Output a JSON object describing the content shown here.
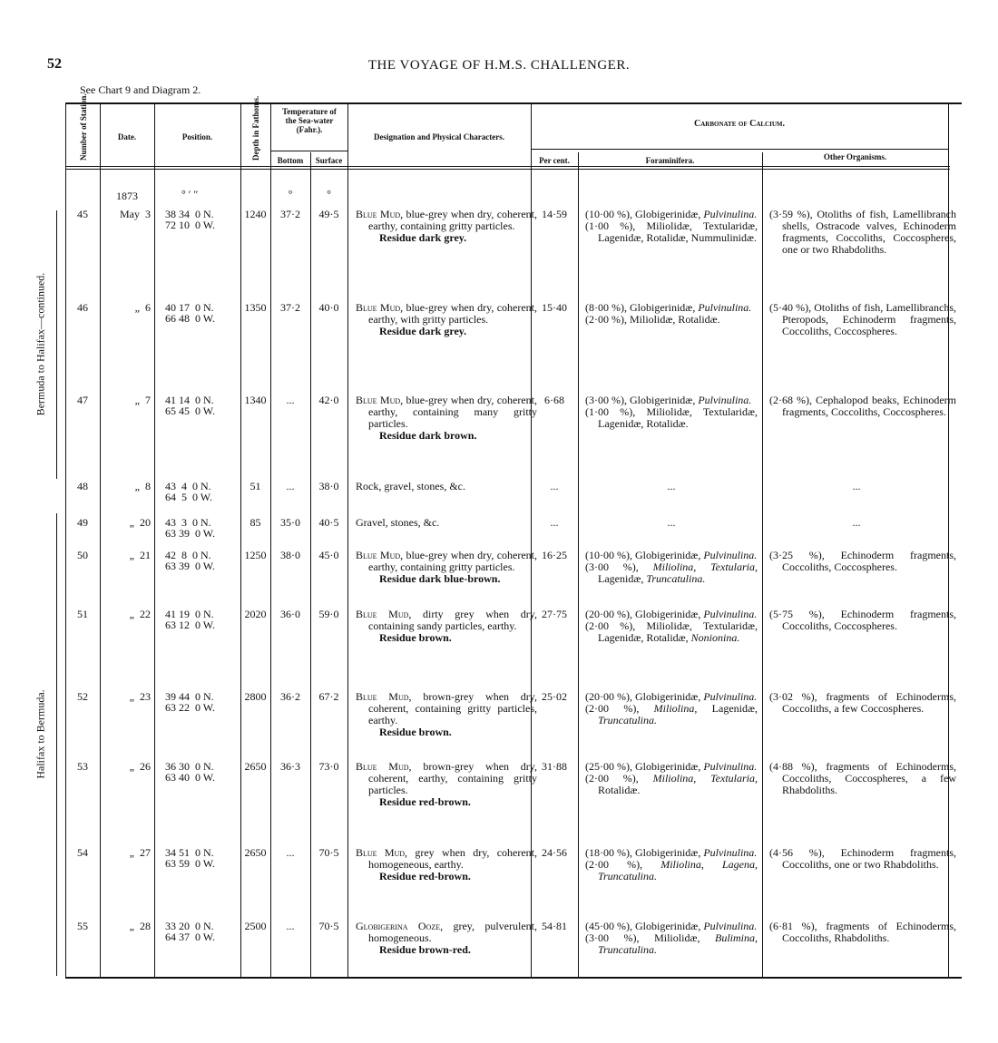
{
  "page": {
    "number": "52",
    "running_title": "THE VOYAGE OF H.M.S. CHALLENGER.",
    "see_note": "See Chart 9 and Diagram 2."
  },
  "side_labels": {
    "upper": "Bermuda to Halifax—continued.",
    "lower": "Halifax to Bermuda."
  },
  "headers": {
    "station": "Number of Station.",
    "date": "Date.",
    "position": "Position.",
    "depth": "Depth in Fathoms.",
    "temperature": "Temperature of the Sea-water (Fahr.).",
    "bottom": "Bottom",
    "surface": "Surface",
    "designation": "Designation and Physical Characters.",
    "carbonate": "Carbonate of Calcium.",
    "per_cent": "Per cent.",
    "foraminifera": "Foraminifera.",
    "other": "Other Organisms."
  },
  "units": {
    "year": "1873",
    "position_units": "°   ′   ″",
    "temp_bottom_unit": "°",
    "temp_surface_unit": "°"
  },
  "rows": [
    {
      "station": "45",
      "date": "May  3",
      "lat": "38 34  0 N.",
      "lon": "72 10  0 W.",
      "depth": "1240",
      "bottom": "37·2",
      "surface": "49·5",
      "des_lead": "Blue Mud,",
      "des_text": "blue-grey when dry, coherent, earthy, containing gritty particles.",
      "residue": "Residue dark grey.",
      "percent": "14·59",
      "foram": [
        [
          {
            "t": "(10·00 %), Globigerinidæ, "
          },
          {
            "t": "Pulvinulina.",
            "i": true
          }
        ],
        [
          {
            "t": "(1·00 %), Miliolidæ, Textularidæ, Lagenidæ, Rotalidæ, Nummulinidæ."
          }
        ]
      ],
      "other": "(3·59 %), Otoliths of fish, Lamellibranch shells, Ostracode valves, Echinoderm fragments, Coccoliths, Coccospheres, one or two Rhabdoliths."
    },
    {
      "station": "46",
      "date": "„  6",
      "lat": "40 17  0 N.",
      "lon": "66 48  0 W.",
      "depth": "1350",
      "bottom": "37·2",
      "surface": "40·0",
      "des_lead": "Blue Mud,",
      "des_text": "blue-grey when dry, coherent, earthy, with gritty particles.",
      "residue": "Residue dark grey.",
      "percent": "15·40",
      "foram": [
        [
          {
            "t": "(8·00 %), Globigerinidæ, "
          },
          {
            "t": "Pulvinulina.",
            "i": true
          }
        ],
        [
          {
            "t": "(2·00 %), Miliolidæ, Rotalidæ."
          }
        ]
      ],
      "other": "(5·40 %), Otoliths of fish, Lamellibranchs, Pteropods, Echinoderm fragments, Coccoliths, Coccospheres."
    },
    {
      "station": "47",
      "date": "„  7",
      "lat": "41 14  0 N.",
      "lon": "65 45  0 W.",
      "depth": "1340",
      "bottom": "...",
      "surface": "42·0",
      "des_lead": "Blue Mud,",
      "des_text": "blue-grey when dry, coherent, earthy, containing many gritty particles.",
      "residue": "Residue dark brown.",
      "percent": "6·68",
      "foram": [
        [
          {
            "t": "(3·00 %), Globigerinidæ, "
          },
          {
            "t": "Pulvinulina.",
            "i": true
          }
        ],
        [
          {
            "t": "(1·00 %), Miliolidæ, Textularidæ, Lagenidæ, Rotalidæ."
          }
        ]
      ],
      "other": "(2·68 %), Cephalopod beaks, Echinoderm fragments, Coccoliths, Coccospheres."
    },
    {
      "station": "48",
      "date": "„  8",
      "lat": "43  4  0 N.",
      "lon": "64  5  0 W.",
      "depth": "51",
      "bottom": "...",
      "surface": "38·0",
      "des_lead": "",
      "des_text": "Rock, gravel, stones, &c.",
      "residue": "",
      "percent": "...",
      "foram": [
        [
          {
            "t": "..."
          }
        ]
      ],
      "other": "..."
    },
    {
      "station": "49",
      "date": "„  20",
      "lat": "43  3  0 N.",
      "lon": "63 39  0 W.",
      "depth": "85",
      "bottom": "35·0",
      "surface": "40·5",
      "des_lead": "",
      "des_text": "Gravel, stones, &c.",
      "residue": "",
      "percent": "...",
      "foram": [
        [
          {
            "t": "..."
          }
        ]
      ],
      "other": "..."
    },
    {
      "station": "50",
      "date": "„  21",
      "lat": "42  8  0 N.",
      "lon": "63 39  0 W.",
      "depth": "1250",
      "bottom": "38·0",
      "surface": "45·0",
      "des_lead": "Blue Mud,",
      "des_text": "blue-grey when dry, coherent, earthy, containing gritty particles.",
      "residue": "Residue dark blue-brown.",
      "percent": "16·25",
      "foram": [
        [
          {
            "t": "(10·00 %), Globigerinidæ, "
          },
          {
            "t": "Pulvinulina.",
            "i": true
          }
        ],
        [
          {
            "t": "(3·00 %), "
          },
          {
            "t": "Miliolina, Textularia,",
            "i": true
          },
          {
            "t": " Lagenidæ, "
          },
          {
            "t": "Truncatulina.",
            "i": true
          }
        ]
      ],
      "other": "(3·25 %), Echinoderm fragments, Coccoliths, Coccospheres."
    },
    {
      "station": "51",
      "date": "„  22",
      "lat": "41 19  0 N.",
      "lon": "63 12  0 W.",
      "depth": "2020",
      "bottom": "36·0",
      "surface": "59·0",
      "des_lead": "Blue Mud,",
      "des_text": "dirty grey when dry, containing sandy particles, earthy.",
      "residue": "Residue brown.",
      "percent": "27·75",
      "foram": [
        [
          {
            "t": "(20·00 %), Globigerinidæ, "
          },
          {
            "t": "Pulvinulina.",
            "i": true
          }
        ],
        [
          {
            "t": "(2·00 %), Miliolidæ, Textularidæ, Lagenidæ, Rotalidæ, "
          },
          {
            "t": "Nonionina.",
            "i": true
          }
        ]
      ],
      "other": "(5·75 %), Echinoderm fragments, Coccoliths, Coccospheres."
    },
    {
      "station": "52",
      "date": "„  23",
      "lat": "39 44  0 N.",
      "lon": "63 22  0 W.",
      "depth": "2800",
      "bottom": "36·2",
      "surface": "67·2",
      "des_lead": "Blue Mud,",
      "des_text": "brown-grey when dry, coherent, containing gritty particles, earthy.",
      "residue": "Residue brown.",
      "percent": "25·02",
      "foram": [
        [
          {
            "t": "(20·00 %), Globigerinidæ, "
          },
          {
            "t": "Pulvinulina.",
            "i": true
          }
        ],
        [
          {
            "t": "(2·00 %), "
          },
          {
            "t": "Miliolina,",
            "i": true
          },
          {
            "t": " Lagenidæ, "
          },
          {
            "t": "Truncatulina.",
            "i": true
          }
        ]
      ],
      "other": "(3·02 %), fragments of Echinoderms, Coccoliths, a few Coccospheres."
    },
    {
      "station": "53",
      "date": "„  26",
      "lat": "36 30  0 N.",
      "lon": "63 40  0 W.",
      "depth": "2650",
      "bottom": "36·3",
      "surface": "73·0",
      "des_lead": "Blue Mud,",
      "des_text": "brown-grey when dry, coherent, earthy, containing gritty particles.",
      "residue": "Residue red-brown.",
      "percent": "31·88",
      "foram": [
        [
          {
            "t": "(25·00 %), Globigerinidæ, "
          },
          {
            "t": "Pulvinulina.",
            "i": true
          }
        ],
        [
          {
            "t": "(2·00 %), "
          },
          {
            "t": "Miliolina, Textularia,",
            "i": true
          },
          {
            "t": " Rotalidæ."
          }
        ]
      ],
      "other": "(4·88 %), fragments of Echinoderms, Coccoliths, Coccospheres, a few Rhabdoliths."
    },
    {
      "station": "54",
      "date": "„  27",
      "lat": "34 51  0 N.",
      "lon": "63 59  0 W.",
      "depth": "2650",
      "bottom": "...",
      "surface": "70·5",
      "des_lead": "Blue Mud,",
      "des_text": "grey when dry, coherent, homogeneous, earthy.",
      "residue": "Residue red-brown.",
      "percent": "24·56",
      "foram": [
        [
          {
            "t": "(18·00 %), Globigerinidæ, "
          },
          {
            "t": "Pulvinulina.",
            "i": true
          }
        ],
        [
          {
            "t": "(2·00 %), "
          },
          {
            "t": "Miliolina, Lagena, Truncatulina.",
            "i": true
          }
        ]
      ],
      "other": "(4·56 %), Echinoderm fragments, Coccoliths, one or two Rhabdoliths."
    },
    {
      "station": "55",
      "date": "„  28",
      "lat": "33 20  0 N.",
      "lon": "64 37  0 W.",
      "depth": "2500",
      "bottom": "...",
      "surface": "70·5",
      "des_lead": "Globigerina Ooze,",
      "des_text": "grey, pulverulent, homogeneous.",
      "residue": "Residue brown-red.",
      "percent": "54·81",
      "foram": [
        [
          {
            "t": "(45·00 %), Globigerinidæ, "
          },
          {
            "t": "Pulvinulina.",
            "i": true
          }
        ],
        [
          {
            "t": "(3·00 %), Miliolidæ, "
          },
          {
            "t": "Bulimina, Truncatulina.",
            "i": true
          }
        ]
      ],
      "other": "(6·81 %), fragments of Echinoderms, Coccoliths, Rhabdoliths."
    }
  ]
}
